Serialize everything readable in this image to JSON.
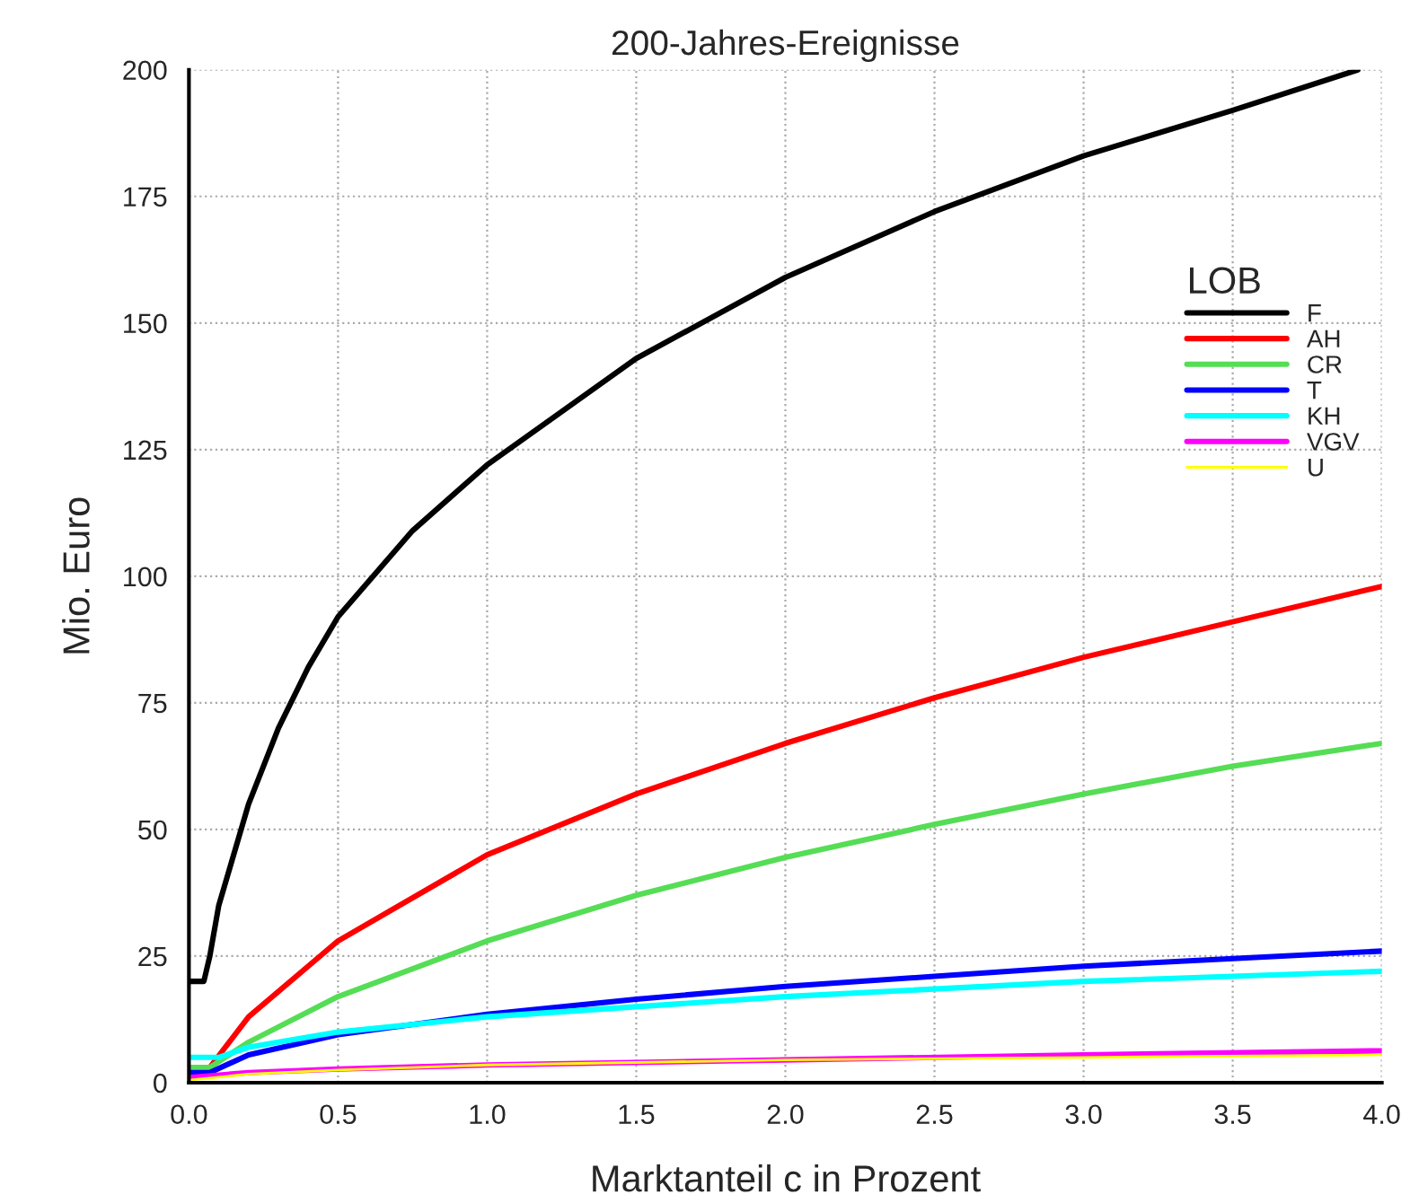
{
  "chart_data": {
    "type": "line",
    "title": "200-Jahres-Ereignisse",
    "xlabel": "Marktanteil c in Prozent",
    "ylabel": "Mio. Euro",
    "legend_title": "LOB",
    "legend": "right",
    "grid": true,
    "marker": "none",
    "line_style": "solid",
    "xlim": [
      0,
      4
    ],
    "ylim": [
      0,
      200
    ],
    "xticks": [
      {
        "value": 0,
        "label": "0.0"
      },
      {
        "value": 0.5,
        "label": "0.5"
      },
      {
        "value": 1,
        "label": "1.0"
      },
      {
        "value": 1.5,
        "label": "1.5"
      },
      {
        "value": 2,
        "label": "2.0"
      },
      {
        "value": 2.5,
        "label": "2.5"
      },
      {
        "value": 3,
        "label": "3.0"
      },
      {
        "value": 3.5,
        "label": "3.5"
      },
      {
        "value": 4,
        "label": "4.0"
      }
    ],
    "yticks": [
      0,
      25,
      50,
      75,
      100,
      125,
      150,
      175,
      200
    ],
    "series": [
      {
        "name": "F",
        "color": "#000000",
        "x": [
          0,
          0.05,
          0.07,
          0.1,
          0.2,
          0.3,
          0.4,
          0.5,
          0.75,
          1.0,
          1.5,
          2.0,
          2.5,
          3.0,
          3.5,
          3.92
        ],
        "values": [
          20,
          20,
          25,
          35,
          55,
          70,
          82,
          92,
          109,
          122,
          143,
          159,
          172,
          183,
          192,
          200
        ]
      },
      {
        "name": "AH",
        "color": "#ff0000",
        "x": [
          0.07,
          0.2,
          0.5,
          1.0,
          1.5,
          2.0,
          2.5,
          3.0,
          3.5,
          4.0
        ],
        "values": [
          3,
          13,
          28,
          45,
          57,
          67,
          76,
          84,
          91,
          98
        ]
      },
      {
        "name": "CR",
        "color": "#55dd55",
        "x": [
          0,
          0.07,
          0.2,
          0.5,
          1.0,
          1.5,
          2.0,
          2.5,
          3.0,
          3.5,
          4.0
        ],
        "values": [
          3,
          3,
          8,
          17,
          28,
          37,
          44.5,
          51,
          57,
          62.5,
          67
        ]
      },
      {
        "name": "T",
        "color": "#0000ff",
        "x": [
          0,
          0.07,
          0.2,
          0.5,
          1.0,
          1.5,
          2.0,
          2.5,
          3.0,
          3.5,
          4.0
        ],
        "values": [
          2,
          2,
          5.5,
          9.5,
          13.5,
          16.5,
          19,
          21,
          23,
          24.5,
          26
        ]
      },
      {
        "name": "KH",
        "color": "#00ffff",
        "x": [
          0,
          0.1,
          0.2,
          0.5,
          1.0,
          1.5,
          2.0,
          3.0,
          4.0
        ],
        "values": [
          5,
          5,
          7,
          10,
          13,
          15,
          17,
          20,
          22
        ]
      },
      {
        "name": "VGV",
        "color": "#ff00ff",
        "x": [
          0,
          0.2,
          0.5,
          1.0,
          2.0,
          3.0,
          4.0
        ],
        "values": [
          1,
          2,
          2.7,
          3.5,
          4.5,
          5.5,
          6.3
        ]
      },
      {
        "name": "U",
        "color": "#ffff00",
        "x": [
          0,
          0.2,
          0.5,
          1.0,
          2.0,
          3.0,
          4.0
        ],
        "values": [
          0.5,
          1.7,
          2.5,
          3.5,
          4.5,
          5,
          5.5
        ]
      }
    ]
  }
}
